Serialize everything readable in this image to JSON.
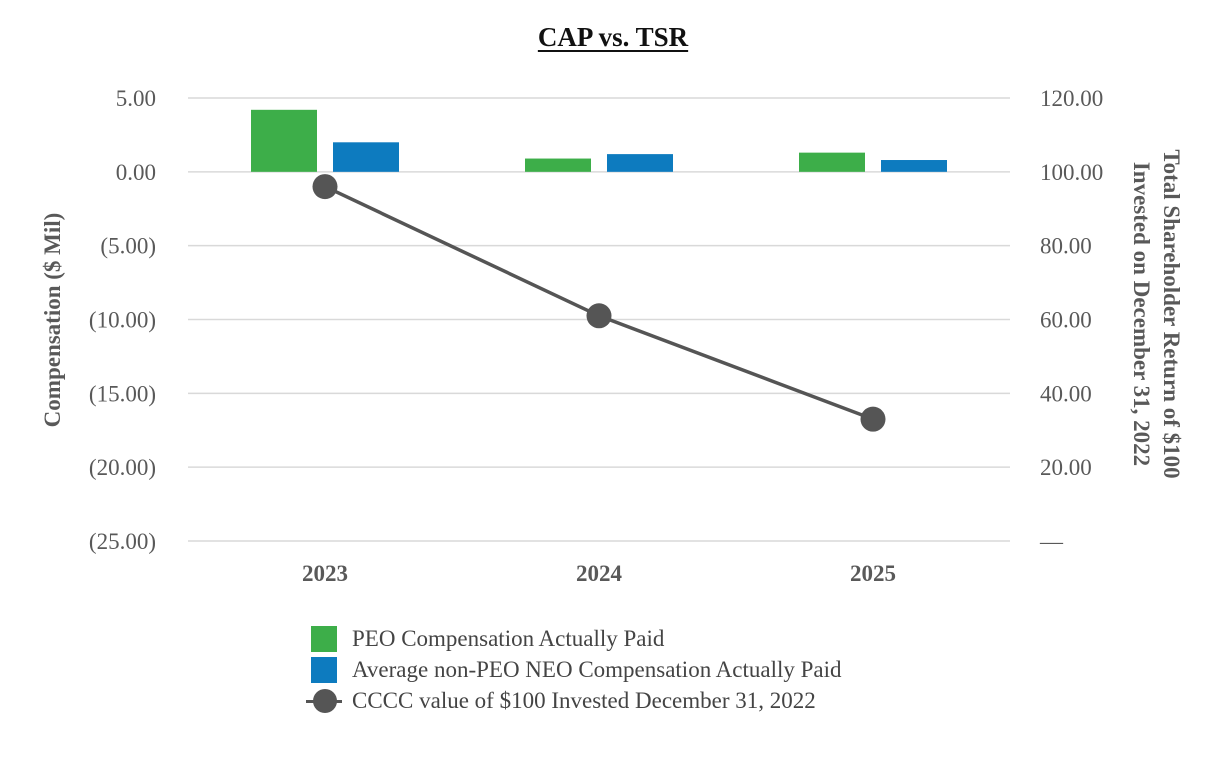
{
  "chart_data": {
    "type": "bar+line",
    "title": "CAP vs. TSR",
    "categories": [
      "2023",
      "2024",
      "2025"
    ],
    "series": [
      {
        "name": "PEO Compensation Actually Paid",
        "kind": "bar",
        "axis": "left",
        "color": "#3dae49",
        "values": [
          4.2,
          0.9,
          1.3
        ]
      },
      {
        "name": "Average non-PEO NEO Compensation Actually Paid",
        "kind": "bar",
        "axis": "left",
        "color": "#0d7bbf",
        "values": [
          2.0,
          1.2,
          0.8
        ]
      },
      {
        "name": "CCCC value of $100 Invested December 31, 2022",
        "kind": "line",
        "axis": "right",
        "color": "#555555",
        "values": [
          96.0,
          61.0,
          33.0
        ]
      }
    ],
    "y_left": {
      "label": "Compensation ($ Mil)",
      "range": [
        -25,
        5
      ],
      "ticks": [
        5,
        0,
        -5,
        -10,
        -15,
        -20,
        -25
      ],
      "tick_labels": [
        "5.00",
        "0.00",
        "(5.00)",
        "(10.00)",
        "(15.00)",
        "(20.00)",
        "(25.00)"
      ]
    },
    "y_right": {
      "label_line1": "Total Shareholder Return of $100",
      "label_line2": "Invested on December 31, 2022",
      "range": [
        0,
        120
      ],
      "ticks": [
        120,
        100,
        80,
        60,
        40,
        20,
        0
      ],
      "tick_labels": [
        "120.00",
        "100.00",
        "80.00",
        "60.00",
        "40.00",
        "20.00",
        "—"
      ]
    },
    "grid": true,
    "legend_position": "bottom"
  },
  "colors": {
    "grid": "#d9d9d9",
    "axis_text": "#595959",
    "title": "#111111"
  }
}
